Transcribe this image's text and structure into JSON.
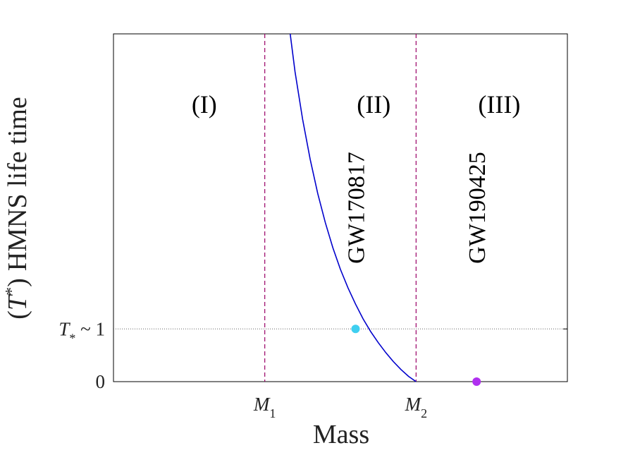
{
  "chart_data": {
    "type": "line",
    "title": "",
    "xlabel": "Mass",
    "ylabel": "(T*) HMNS life time",
    "xlim": [
      0,
      3
    ],
    "ylim": [
      0,
      6.6
    ],
    "x_ticks": [
      {
        "value": 1,
        "base": "M",
        "sub": "1"
      },
      {
        "value": 2,
        "base": "M",
        "sub": "2"
      }
    ],
    "y_ticks": [
      {
        "value": 0,
        "label": "0"
      },
      {
        "value": 1,
        "label": "T* ~ 1"
      }
    ],
    "ytick_zero": "0",
    "ytick_one_sym": "T",
    "ytick_one_sub": "*",
    "ytick_one_rest": " ~ 1",
    "ylabel_paren_open": "(",
    "ylabel_sym": "T",
    "ylabel_sub": "*",
    "ylabel_paren_close": ")",
    "ylabel_rest": "HMNS life time",
    "series": [
      {
        "name": "HMNS lifetime curve",
        "color": "#0000cc",
        "x": [
          1.168,
          1.2,
          1.25,
          1.3,
          1.35,
          1.4,
          1.45,
          1.5,
          1.55,
          1.6,
          1.65,
          1.7,
          1.75,
          1.8,
          1.85,
          1.9,
          1.95,
          2.0
        ],
        "y": [
          6.6,
          5.88,
          4.98,
          4.22,
          3.57,
          3.02,
          2.54,
          2.13,
          1.78,
          1.47,
          1.19,
          0.95,
          0.74,
          0.55,
          0.38,
          0.23,
          0.1,
          0.0
        ]
      }
    ],
    "vlines": [
      {
        "x": 1,
        "color": "#990066",
        "style": "dashed"
      },
      {
        "x": 2,
        "color": "#990066",
        "style": "dashed"
      }
    ],
    "hlines": [
      {
        "y": 1,
        "color": "#666666",
        "style": "dotted"
      }
    ],
    "points": [
      {
        "name": "GW170817",
        "x": 1.6,
        "y": 1.0,
        "color": "#3fcff0"
      },
      {
        "name": "GW190425",
        "x": 2.4,
        "y": 0.0,
        "color": "#b030f0"
      }
    ],
    "regions": [
      {
        "label": "(I)",
        "x": 0.6
      },
      {
        "label": "(II)",
        "x": 1.72
      },
      {
        "label": "(III)",
        "x": 2.55
      }
    ],
    "annotations": [
      {
        "text": "GW170817",
        "x": 1.6,
        "y": 3.3,
        "rotation": -90
      },
      {
        "text": "GW190425",
        "x": 2.4,
        "y": 3.3,
        "rotation": -90
      }
    ],
    "grid": false
  }
}
